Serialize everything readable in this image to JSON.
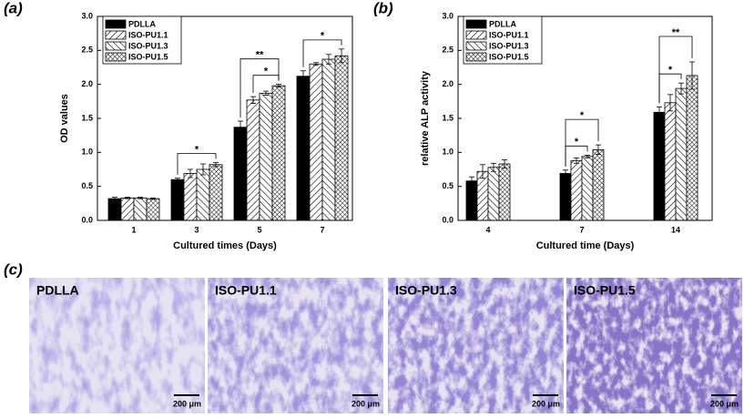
{
  "chart_data": [
    {
      "type": "bar",
      "panel_label": "(a)",
      "x_label": "Cultured times (Days)",
      "y_label": "OD values",
      "categories": [
        "1",
        "3",
        "5",
        "7"
      ],
      "ylim": [
        0,
        3
      ],
      "yticks": [
        {
          "value": 0,
          "label": "0.0"
        },
        {
          "value": 0.5,
          "label": "0.5"
        },
        {
          "value": 1,
          "label": "1.0"
        },
        {
          "value": 1.5,
          "label": "1.5"
        },
        {
          "value": 2,
          "label": "2.0"
        },
        {
          "value": 2.5,
          "label": "2.5"
        },
        {
          "value": 3,
          "label": "3.0"
        }
      ],
      "legend": "upper left",
      "series": [
        {
          "name": "PDLLA",
          "color": "#000000",
          "hatch": "solid",
          "values": [
            0.32,
            0.6,
            1.37,
            2.12
          ],
          "errors": [
            0.02,
            0.02,
            0.09,
            0.08
          ]
        },
        {
          "name": "ISO-PU1.1",
          "color": "#000000",
          "hatch": "forward",
          "values": [
            0.33,
            0.69,
            1.77,
            2.3
          ],
          "errors": [
            0.01,
            0.06,
            0.05,
            0.02
          ]
        },
        {
          "name": "ISO-PU1.3",
          "color": "#000000",
          "hatch": "back",
          "values": [
            0.33,
            0.75,
            1.87,
            2.37
          ],
          "errors": [
            0.01,
            0.08,
            0.03,
            0.07
          ]
        },
        {
          "name": "ISO-PU1.5",
          "color": "#000000",
          "hatch": "cross",
          "values": [
            0.32,
            0.82,
            1.98,
            2.42
          ],
          "errors": [
            0.01,
            0.03,
            0.02,
            0.1
          ]
        }
      ],
      "annotations": [
        "*",
        "**",
        "*",
        "*"
      ]
    },
    {
      "type": "bar",
      "panel_label": "(b)",
      "x_label": "Cultured time (Days)",
      "y_label": "relative ALP activity",
      "categories": [
        "4",
        "7",
        "14"
      ],
      "ylim": [
        0,
        3
      ],
      "yticks": [
        {
          "value": 0,
          "label": "0.0"
        },
        {
          "value": 0.5,
          "label": "0.5"
        },
        {
          "value": 1,
          "label": "1.0"
        },
        {
          "value": 1.5,
          "label": "1.5"
        },
        {
          "value": 2,
          "label": "2.0"
        },
        {
          "value": 2.5,
          "label": "2.5"
        },
        {
          "value": 3,
          "label": "3.0"
        }
      ],
      "legend": "upper left",
      "series": [
        {
          "name": "PDLLA",
          "color": "#000000",
          "hatch": "solid",
          "values": [
            0.58,
            0.69,
            1.59
          ],
          "errors": [
            0.06,
            0.05,
            0.08
          ]
        },
        {
          "name": "ISO-PU1.1",
          "color": "#000000",
          "hatch": "forward",
          "values": [
            0.72,
            0.88,
            1.73
          ],
          "errors": [
            0.1,
            0.04,
            0.12
          ]
        },
        {
          "name": "ISO-PU1.3",
          "color": "#000000",
          "hatch": "back",
          "values": [
            0.78,
            0.94,
            1.94
          ],
          "errors": [
            0.06,
            0.02,
            0.08
          ]
        },
        {
          "name": "ISO-PU1.5",
          "color": "#000000",
          "hatch": "cross",
          "values": [
            0.83,
            1.04,
            2.13
          ],
          "errors": [
            0.06,
            0.07,
            0.2
          ]
        }
      ],
      "annotations": [
        "*",
        "*",
        "*",
        "**"
      ]
    }
  ],
  "panel_c": {
    "label": "(c)",
    "images": [
      {
        "label": "PDLLA",
        "scale_bar": "200 μm"
      },
      {
        "label": "ISO-PU1.1",
        "scale_bar": "200 μm"
      },
      {
        "label": "ISO-PU1.3",
        "scale_bar": "200 μm"
      },
      {
        "label": "ISO-PU1.5",
        "scale_bar": "200 μm"
      }
    ]
  }
}
